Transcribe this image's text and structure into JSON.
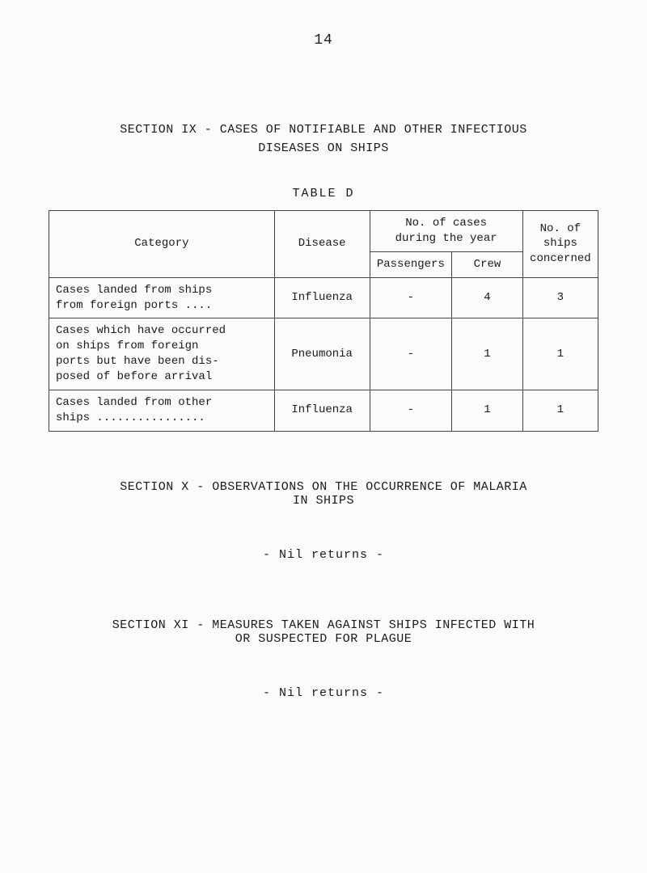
{
  "pageNumber": "14",
  "sectionIX": {
    "title": "SECTION IX - CASES OF NOTIFIABLE AND OTHER INFECTIOUS\nDISEASES ON SHIPS",
    "tableLabel": "TABLE   D",
    "headers": {
      "category": "Category",
      "disease": "Disease",
      "casesGroup": "No. of cases\nduring the year",
      "passengers": "Passengers",
      "crew": "Crew",
      "ships": "No. of\nships\nconcerned"
    },
    "rows": [
      {
        "category": "Cases landed from ships\n  from foreign ports ....",
        "disease": "Influenza",
        "passengers": "-",
        "crew": "4",
        "ships": "3"
      },
      {
        "category": "Cases which have occurred\n  on ships from foreign\n  ports but have been dis-\n  posed of before arrival",
        "disease": "Pneumonia",
        "passengers": "-",
        "crew": "1",
        "ships": "1"
      },
      {
        "category": "Cases landed from other\n  ships ................",
        "disease": "Influenza",
        "passengers": "-",
        "crew": "1",
        "ships": "1"
      }
    ]
  },
  "sectionX": {
    "title": "SECTION X - OBSERVATIONS ON THE OCCURRENCE OF MALARIA\nIN SHIPS",
    "nil": "-  Nil returns  -"
  },
  "sectionXI": {
    "title": "SECTION XI - MEASURES TAKEN AGAINST SHIPS INFECTED WITH\nOR SUSPECTED FOR PLAGUE",
    "nil": "-  Nil returns  -"
  }
}
